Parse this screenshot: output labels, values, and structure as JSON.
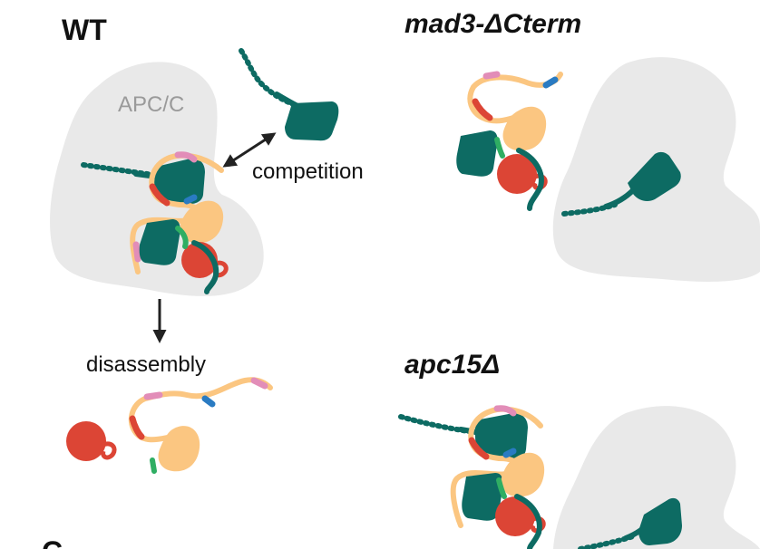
{
  "labels": {
    "wt": "WT",
    "apcc": "APC/C",
    "competition": "competition",
    "disassembly": "disassembly",
    "mad3": "mad3-ΔCterm",
    "apc15": "apc15Δ",
    "panel_c": "C"
  },
  "colors": {
    "apc_gray": "#e9e9e9",
    "teal": "#0d6b63",
    "light_orange": "#fbc681",
    "red": "#dc4535",
    "pink": "#e28db8",
    "blue": "#2a7bc2",
    "green": "#2fae63",
    "arrow": "#222222"
  }
}
